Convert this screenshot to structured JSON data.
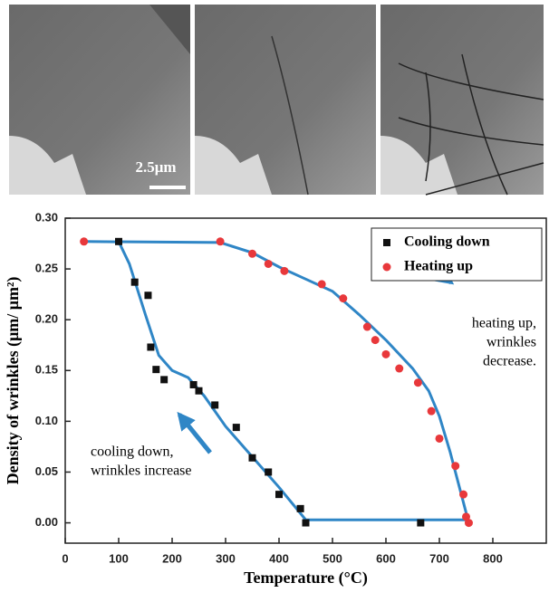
{
  "images": {
    "scale_bar": "2.5μm"
  },
  "chart_data": {
    "type": "scatter",
    "xlabel": "Temperature (°C)",
    "ylabel": "Density of wrinkles (μm/ μm²)",
    "xlim": [
      0,
      900
    ],
    "ylim": [
      -0.02,
      0.3
    ],
    "xticks": [
      0,
      100,
      200,
      300,
      400,
      500,
      600,
      700,
      800
    ],
    "yticks": [
      {
        "value": 0,
        "label": "0.00"
      },
      {
        "value": 0.05,
        "label": "0.05"
      },
      {
        "value": 0.1,
        "label": "0.10"
      },
      {
        "value": 0.15,
        "label": "0.15"
      },
      {
        "value": 0.2,
        "label": "0.20"
      },
      {
        "value": 0.25,
        "label": "0.25"
      },
      {
        "value": 0.3,
        "label": "0.30"
      }
    ],
    "legend": "upper right",
    "series": [
      {
        "name": "Cooling down",
        "color": "#111111",
        "marker": "square",
        "x": [
          100,
          130,
          155,
          160,
          170,
          185,
          240,
          250,
          280,
          320,
          350,
          380,
          400,
          440,
          450,
          665
        ],
        "y": [
          0.277,
          0.237,
          0.224,
          0.173,
          0.151,
          0.141,
          0.136,
          0.13,
          0.116,
          0.094,
          0.064,
          0.05,
          0.028,
          0.014,
          0.0,
          0.0
        ]
      },
      {
        "name": "Heating up",
        "color": "#e8383b",
        "marker": "circle",
        "x": [
          35,
          290,
          350,
          380,
          410,
          480,
          520,
          565,
          580,
          600,
          625,
          660,
          685,
          700,
          730,
          745,
          750,
          755
        ],
        "y": [
          0.277,
          0.277,
          0.265,
          0.255,
          0.248,
          0.235,
          0.221,
          0.193,
          0.18,
          0.166,
          0.152,
          0.138,
          0.11,
          0.083,
          0.056,
          0.028,
          0.006,
          0.0
        ]
      }
    ],
    "fit_lines": [
      {
        "color": "#2f86c6",
        "x": [
          100,
          120,
          150,
          175,
          200,
          230,
          260,
          300,
          350,
          400,
          450,
          750
        ],
        "y": [
          0.277,
          0.255,
          0.205,
          0.165,
          0.15,
          0.143,
          0.125,
          0.095,
          0.065,
          0.035,
          0.003,
          0.003
        ]
      },
      {
        "color": "#2f86c6",
        "x": [
          35,
          290,
          350,
          400,
          450,
          500,
          550,
          600,
          650,
          680,
          700,
          720,
          740,
          755
        ],
        "y": [
          0.277,
          0.276,
          0.266,
          0.252,
          0.24,
          0.228,
          0.205,
          0.18,
          0.152,
          0.13,
          0.105,
          0.07,
          0.03,
          0.0
        ]
      }
    ],
    "annotations": [
      {
        "lines": [
          "heating up,",
          "wrinkles",
          "decrease."
        ]
      },
      {
        "lines": [
          "cooling down,",
          "wrinkles increase"
        ]
      }
    ]
  }
}
